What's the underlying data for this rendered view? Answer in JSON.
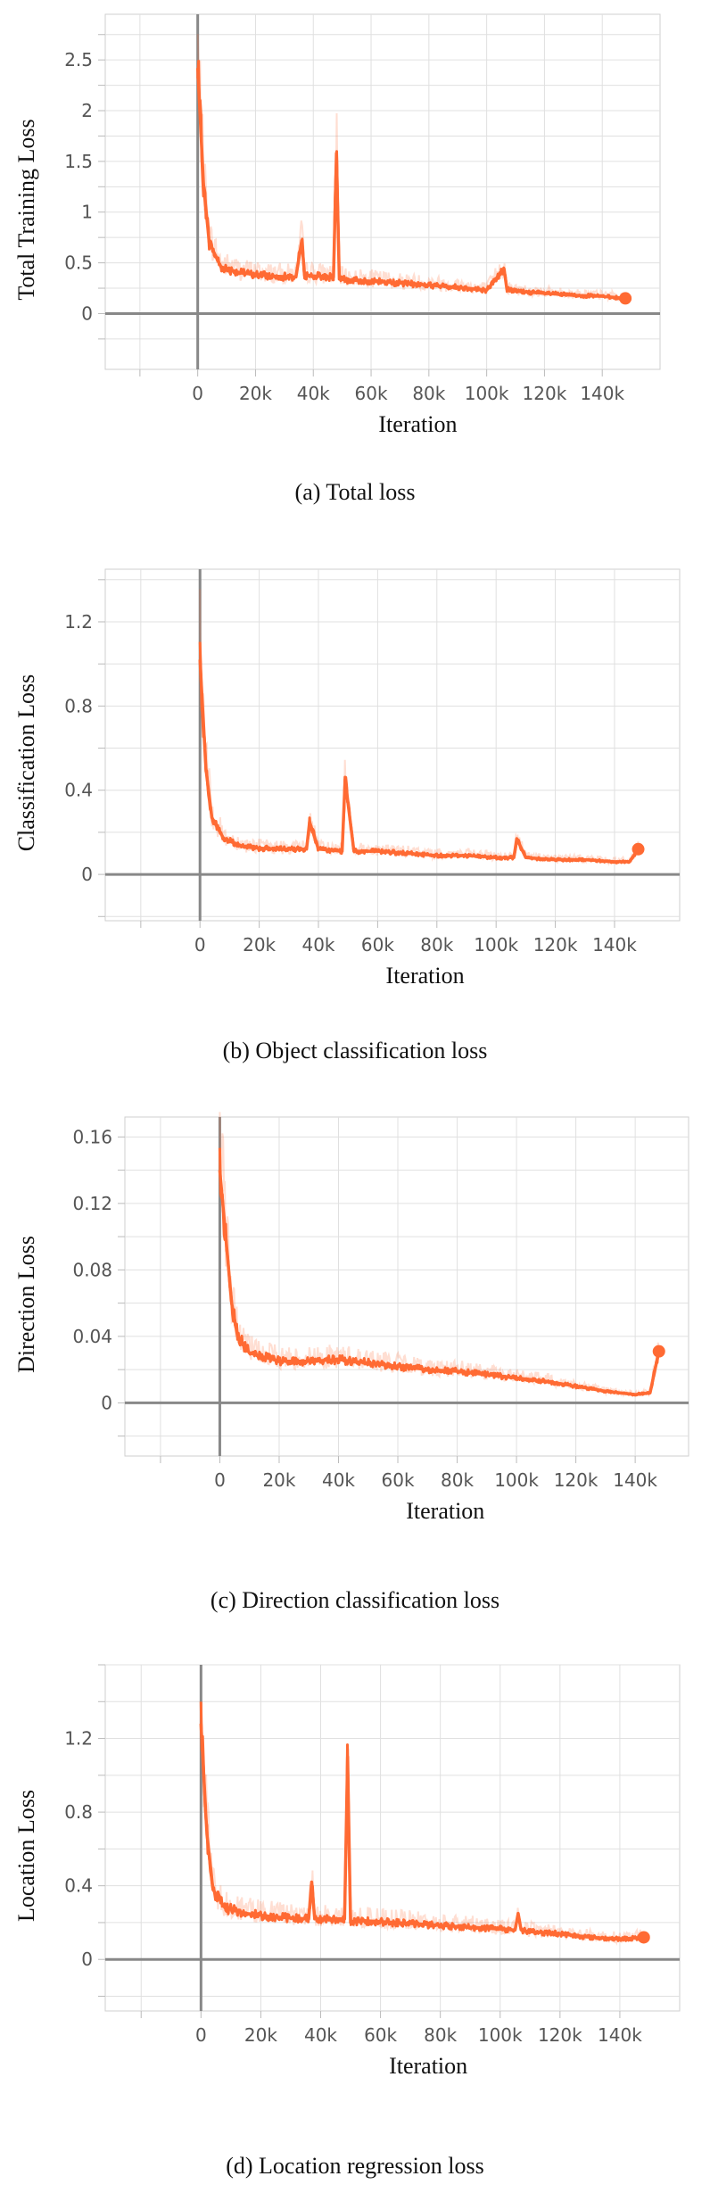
{
  "chart_data": [
    {
      "type": "line",
      "caption": "(a)  Total loss",
      "xlabel": "Iteration",
      "ylabel": "Total Training Loss",
      "xlim": [
        -32000,
        160000
      ],
      "ylim": [
        -0.55,
        2.95
      ],
      "x_ticks": [
        0,
        20000,
        40000,
        60000,
        80000,
        100000,
        120000,
        140000
      ],
      "x_tick_labels": [
        "0",
        "20k",
        "40k",
        "60k",
        "80k",
        "100k",
        "120k",
        "140k"
      ],
      "y_ticks": [
        0,
        0.5,
        1,
        1.5,
        2,
        2.5
      ],
      "y_tick_labels": [
        "0",
        "0.5",
        "1",
        "1.5",
        "2",
        "2.5"
      ],
      "grid": true,
      "series": [
        {
          "color": "#ff6a33",
          "x": [
            0,
            2000,
            4000,
            8000,
            15000,
            25000,
            34000,
            36000,
            37000,
            40000,
            47000,
            48000,
            49000,
            52000,
            60000,
            70000,
            80000,
            90000,
            100000,
            106000,
            107000,
            110000,
            120000,
            130000,
            140000,
            148000
          ],
          "y": [
            2.42,
            1.28,
            0.7,
            0.46,
            0.4,
            0.37,
            0.36,
            0.72,
            0.38,
            0.37,
            0.36,
            1.58,
            0.34,
            0.33,
            0.32,
            0.3,
            0.28,
            0.26,
            0.23,
            0.44,
            0.24,
            0.22,
            0.2,
            0.18,
            0.17,
            0.15
          ]
        }
      ]
    },
    {
      "type": "line",
      "caption": "(b)  Object classification loss",
      "xlabel": "Iteration",
      "ylabel": "Classification Loss",
      "xlim": [
        -32000,
        162000
      ],
      "ylim": [
        -0.22,
        1.45
      ],
      "x_ticks": [
        0,
        20000,
        40000,
        60000,
        80000,
        100000,
        120000,
        140000
      ],
      "x_tick_labels": [
        "0",
        "20k",
        "40k",
        "60k",
        "80k",
        "100k",
        "120k",
        "140k"
      ],
      "y_ticks": [
        0,
        0.4,
        0.8,
        1.2
      ],
      "y_tick_labels": [
        "0",
        "0.4",
        "0.8",
        "1.2"
      ],
      "grid": true,
      "series": [
        {
          "color": "#ff6a33",
          "x": [
            0,
            2000,
            4000,
            8000,
            15000,
            25000,
            36000,
            37000,
            40000,
            48000,
            49000,
            52000,
            60000,
            70000,
            80000,
            90000,
            100000,
            106000,
            107000,
            110000,
            120000,
            130000,
            140000,
            145000,
            148000
          ],
          "y": [
            1.02,
            0.5,
            0.27,
            0.17,
            0.13,
            0.12,
            0.12,
            0.25,
            0.12,
            0.11,
            0.45,
            0.11,
            0.11,
            0.1,
            0.09,
            0.09,
            0.08,
            0.08,
            0.17,
            0.08,
            0.07,
            0.07,
            0.06,
            0.06,
            0.12
          ]
        }
      ]
    },
    {
      "type": "line",
      "caption": "(c)  Direction classification loss",
      "xlabel": "Iteration",
      "ylabel": "Direction Loss",
      "xlim": [
        -32000,
        158000
      ],
      "ylim": [
        -0.032,
        0.172
      ],
      "x_ticks": [
        0,
        20000,
        40000,
        60000,
        80000,
        100000,
        120000,
        140000
      ],
      "x_tick_labels": [
        "0",
        "20k",
        "40k",
        "60k",
        "80k",
        "100k",
        "120k",
        "140k"
      ],
      "y_ticks": [
        0,
        0.04,
        0.08,
        0.12,
        0.16
      ],
      "y_tick_labels": [
        "0",
        "0.04",
        "0.08",
        "0.12",
        "0.16"
      ],
      "grid": true,
      "series": [
        {
          "color": "#ff6a33",
          "x": [
            0,
            2000,
            4000,
            6000,
            10000,
            20000,
            30000,
            40000,
            50000,
            60000,
            70000,
            80000,
            90000,
            100000,
            110000,
            120000,
            130000,
            140000,
            145000,
            148000
          ],
          "y": [
            0.14,
            0.1,
            0.06,
            0.04,
            0.03,
            0.025,
            0.025,
            0.026,
            0.024,
            0.022,
            0.02,
            0.019,
            0.017,
            0.015,
            0.013,
            0.01,
            0.007,
            0.005,
            0.006,
            0.031
          ]
        }
      ]
    },
    {
      "type": "line",
      "caption": "(d)  Location regression loss",
      "xlabel": "Iteration",
      "ylabel": "Location Loss",
      "xlim": [
        -32000,
        160000
      ],
      "ylim": [
        -0.28,
        1.6
      ],
      "x_ticks": [
        0,
        20000,
        40000,
        60000,
        80000,
        100000,
        120000,
        140000
      ],
      "x_tick_labels": [
        "0",
        "20k",
        "40k",
        "60k",
        "80k",
        "100k",
        "120k",
        "140k"
      ],
      "y_ticks": [
        0,
        0.4,
        0.8,
        1.2
      ],
      "y_tick_labels": [
        "0",
        "0.4",
        "0.8",
        "1.2"
      ],
      "grid": true,
      "series": [
        {
          "color": "#ff6a33",
          "x": [
            0,
            2000,
            4000,
            8000,
            15000,
            25000,
            36000,
            37000,
            38000,
            45000,
            48000,
            49000,
            50000,
            55000,
            65000,
            75000,
            85000,
            95000,
            105000,
            106000,
            107000,
            110000,
            120000,
            130000,
            140000,
            148000
          ],
          "y": [
            1.28,
            0.68,
            0.38,
            0.28,
            0.25,
            0.23,
            0.22,
            0.42,
            0.22,
            0.22,
            0.22,
            1.1,
            0.2,
            0.21,
            0.2,
            0.19,
            0.18,
            0.17,
            0.16,
            0.25,
            0.16,
            0.15,
            0.14,
            0.12,
            0.11,
            0.12
          ]
        }
      ]
    }
  ]
}
